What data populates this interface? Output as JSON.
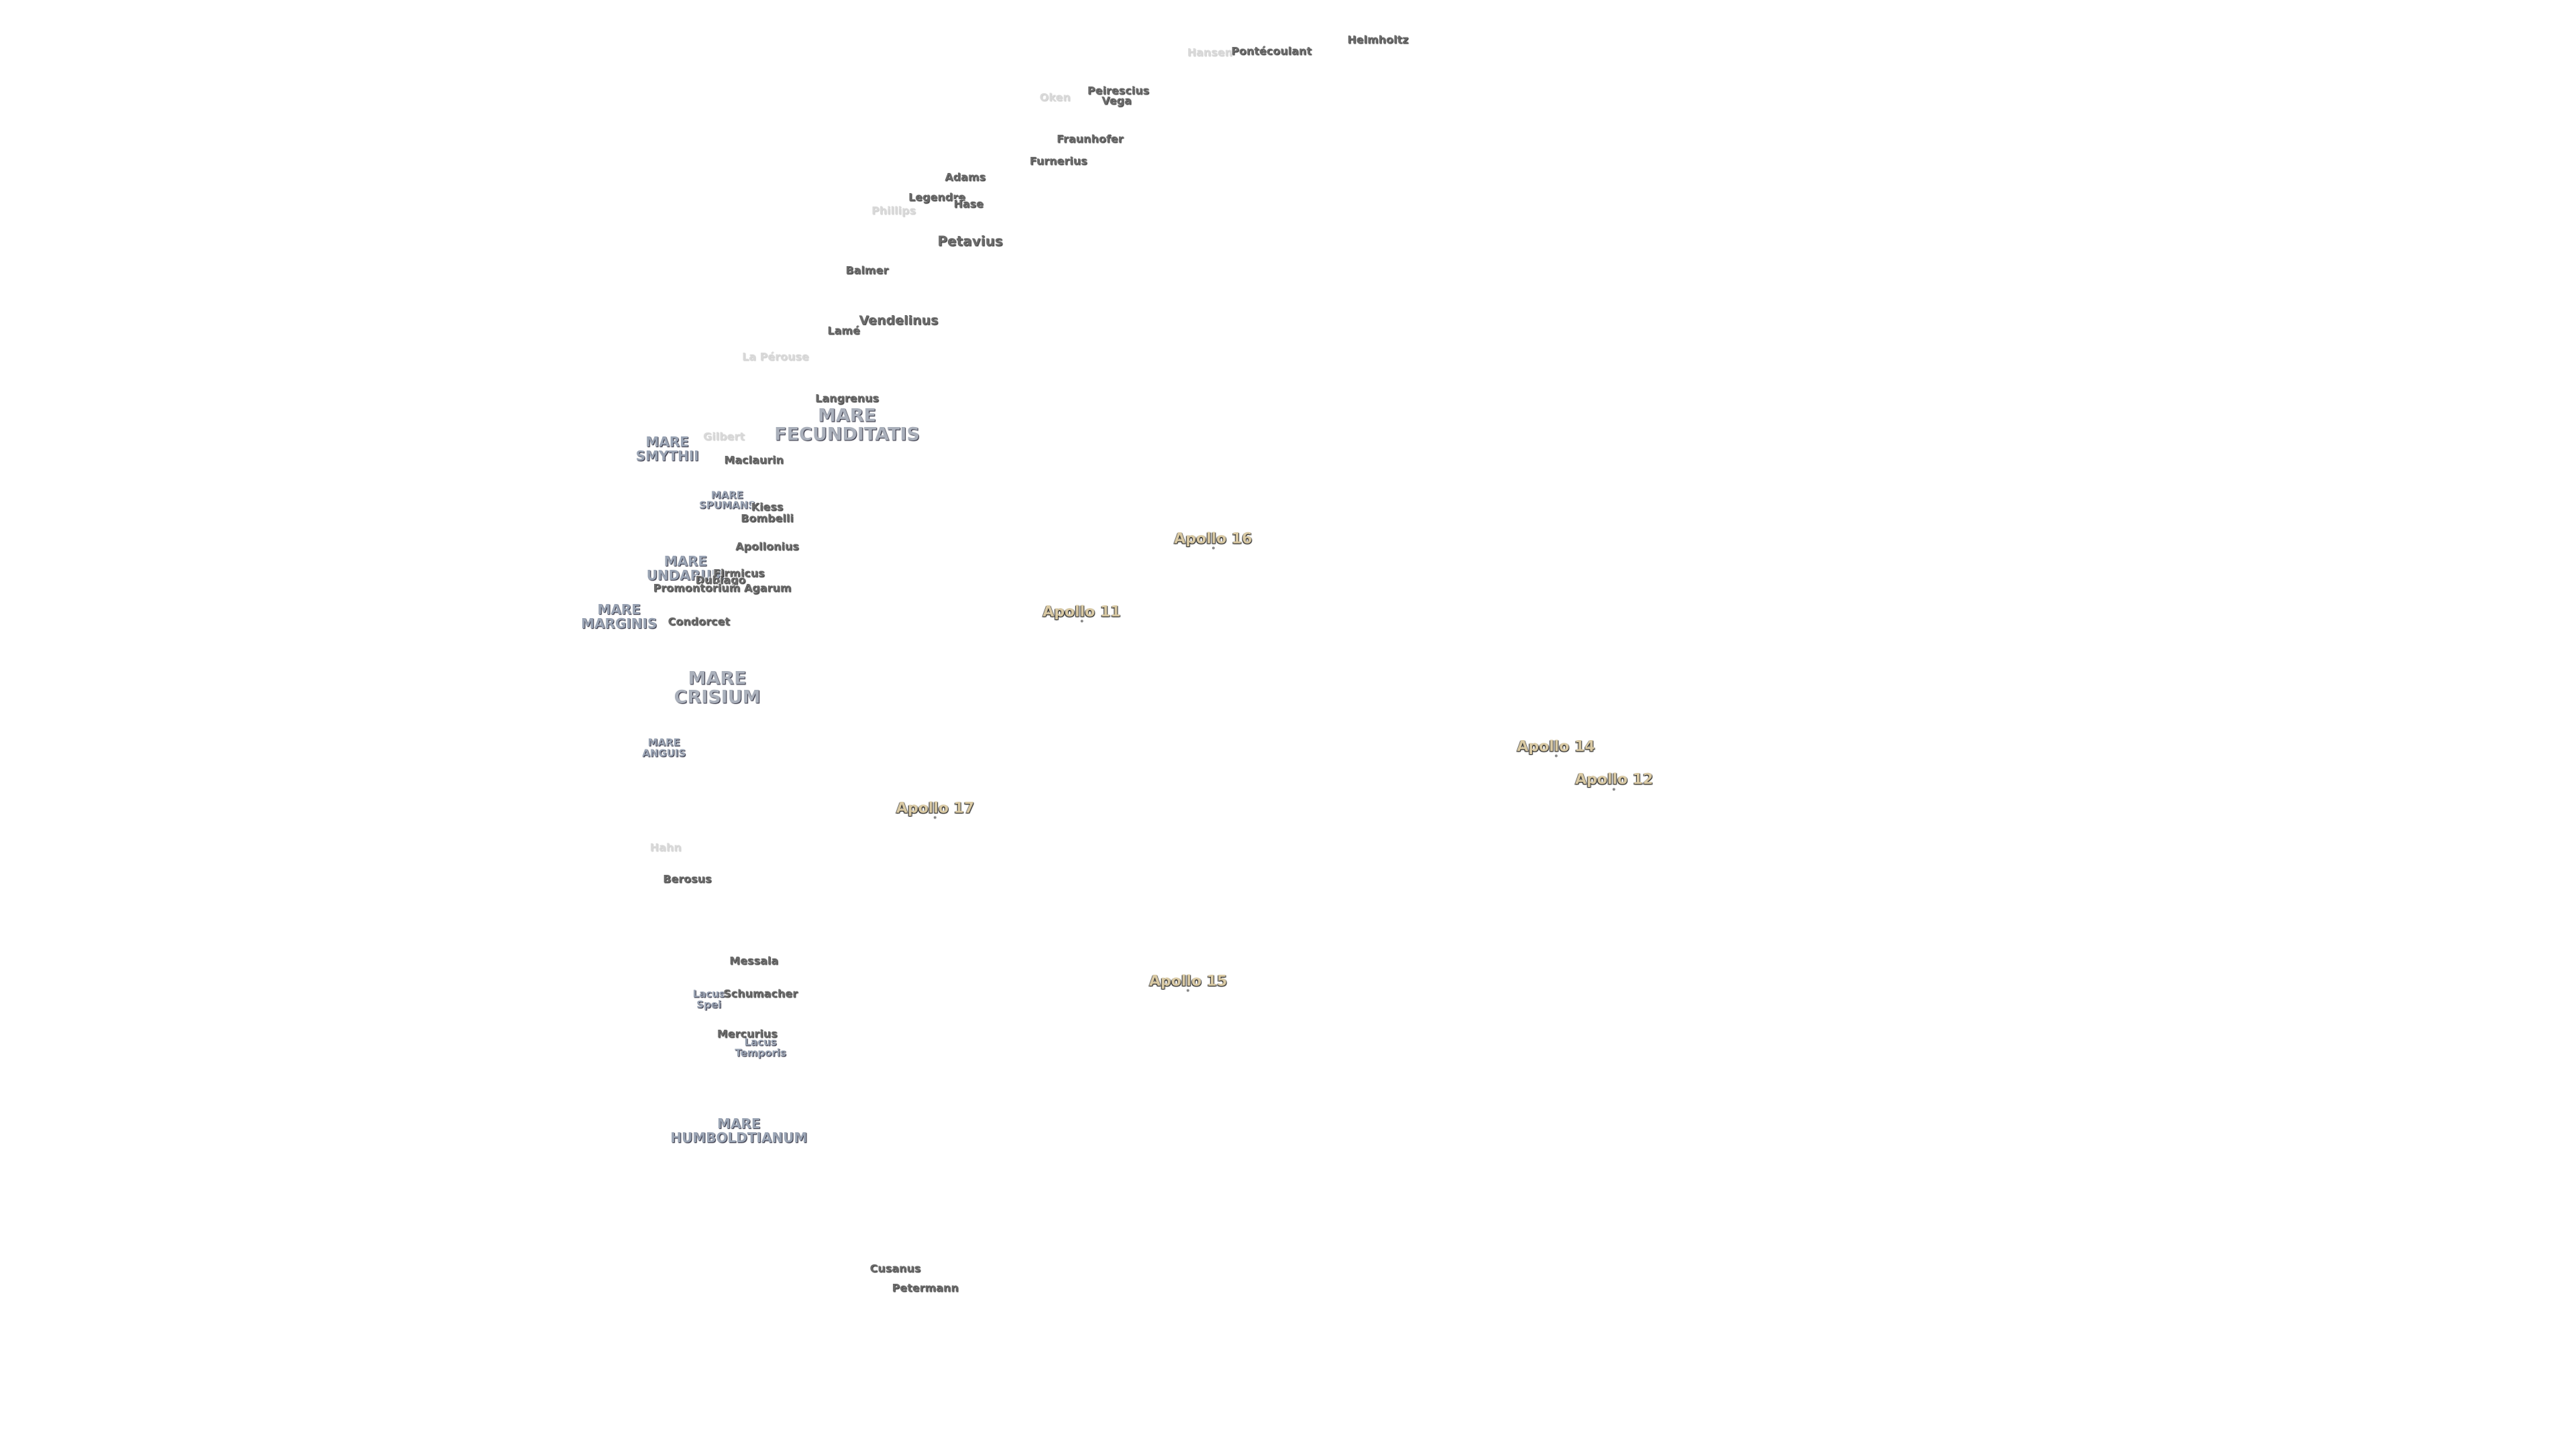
{
  "apollo_sites": [
    "Apollo 16",
    "Apollo 11",
    "Apollo 14",
    "Apollo 12",
    "Apollo 17",
    "Apollo 15"
  ],
  "maria": [
    [
      "MARE",
      "FECUNDITATIS"
    ],
    [
      "MARE",
      "SMYTHII"
    ],
    [
      "MARE",
      "SPUMANS"
    ],
    [
      "MARE",
      "UNDARUM"
    ],
    [
      "MARE",
      "MARGINIS"
    ],
    [
      "MARE",
      "CRISIUM"
    ],
    [
      "MARE",
      "ANGUIS"
    ],
    [
      "Lacus",
      "Spei"
    ],
    [
      "Lacus",
      "Temporis"
    ],
    [
      "MARE",
      "HUMBOLDTIANUM"
    ]
  ],
  "craters": [
    "Hansen",
    "Pontécoulant",
    "Helmholtz",
    "Peirescius",
    "Vega",
    "Oken",
    "Fraunhofer",
    "Furnerius",
    "Adams",
    "Legendre",
    "Hase",
    "Phillips",
    "Petavius",
    "Balmer",
    "Vendelinus",
    "Lamé",
    "La Pérouse",
    "Langrenus",
    "Gilbert",
    "Maclaurin",
    "Kiess",
    "Bombelli",
    "Apollonius",
    "Firmicus",
    "Dubiago",
    "Promontorium Agarum",
    "Condorcet",
    "Hahn",
    "Berosus",
    "Messala",
    "Schumacher",
    "Mercurius",
    "Cusanus",
    "Petermann"
  ]
}
